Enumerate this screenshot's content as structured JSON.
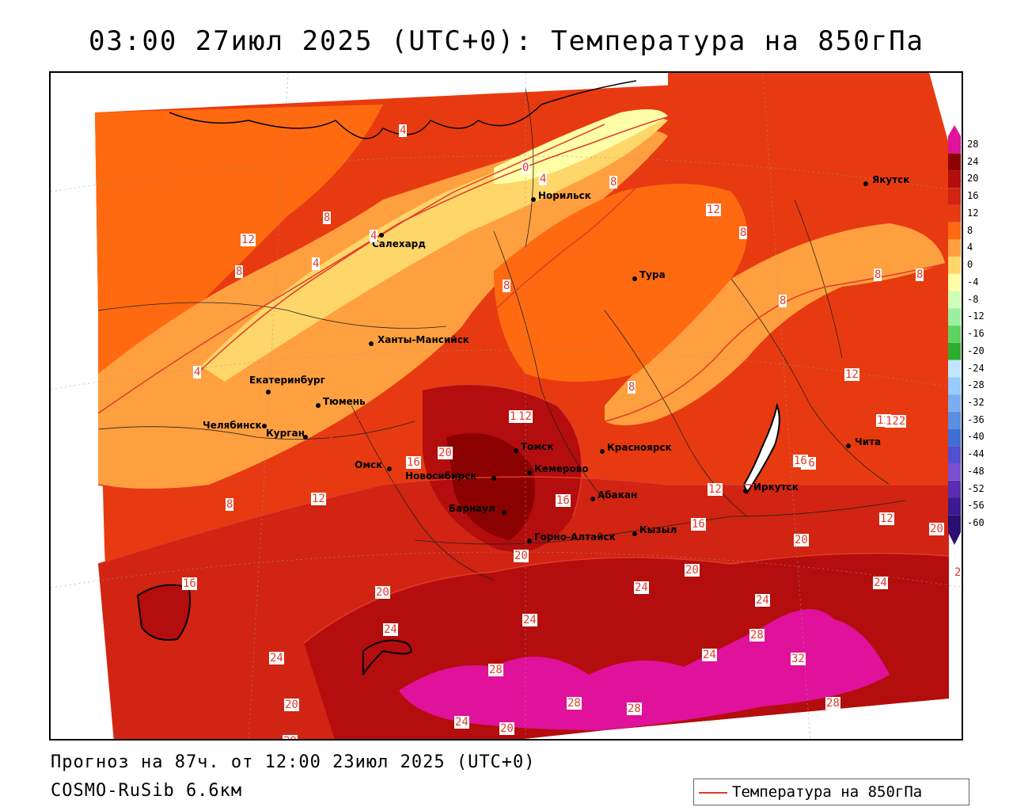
{
  "title": "03:00 27июл 2025 (UTC+0): Температура на 850гПа",
  "subtitle": "Прогноз на 87ч. от 12:00 23июл 2025 (UTC+0)",
  "model": "COSMO-RuSib 6.6км",
  "legend_label": "Температура на 850гПа",
  "colorbar": {
    "labels": [
      "28",
      "24",
      "20",
      "16",
      "12",
      "8",
      "4",
      "0",
      "-4",
      "-8",
      "-12",
      "-16",
      "-20",
      "-24",
      "-28",
      "-32",
      "-36",
      "-40",
      "-44",
      "-48",
      "-52",
      "-56",
      "-60"
    ],
    "colors": [
      "#e0119b",
      "#8b0000",
      "#b30d0d",
      "#d12412",
      "#e83a10",
      "#ff6a10",
      "#ffa040",
      "#ffd66a",
      "#ffffa8",
      "#d0ffb8",
      "#9af0a0",
      "#5fd35f",
      "#2eae2e",
      "#bfe7ff",
      "#99ccff",
      "#7aaef0",
      "#5a8ee0",
      "#3f6fd6",
      "#5050d0",
      "#7a4fd0",
      "#5a2db0",
      "#3b1a90",
      "#2a0e70"
    ]
  },
  "cities": [
    {
      "name": "Якутск"
    },
    {
      "name": "Норильск"
    },
    {
      "name": "Салехард"
    },
    {
      "name": "Тура"
    },
    {
      "name": "Ханты-Мансийск"
    },
    {
      "name": "Екатеринбург"
    },
    {
      "name": "Тюмень"
    },
    {
      "name": "Челябинск"
    },
    {
      "name": "Курган"
    },
    {
      "name": "Омск"
    },
    {
      "name": "Новосибирск"
    },
    {
      "name": "Томск"
    },
    {
      "name": "Кемерово"
    },
    {
      "name": "Красноярск"
    },
    {
      "name": "Барнаул"
    },
    {
      "name": "Абакан"
    },
    {
      "name": "Горно-Алтайск"
    },
    {
      "name": "Кызыл"
    },
    {
      "name": "Иркутск"
    },
    {
      "name": "Чита"
    }
  ],
  "contour_labels": [
    "4",
    "0",
    "4",
    "8",
    "12",
    "8",
    "12",
    "8",
    "4",
    "4",
    "8",
    "8",
    "8",
    "8",
    "8",
    "12",
    "8",
    "12",
    "12",
    "16",
    "20",
    "16",
    "12",
    "8",
    "12",
    "16",
    "12",
    "16",
    "16",
    "20",
    "20",
    "20",
    "20",
    "20",
    "24",
    "24",
    "24",
    "24",
    "24",
    "24",
    "20",
    "28",
    "28",
    "28",
    "32",
    "28",
    "28",
    "24",
    "24",
    "20",
    "20",
    "16",
    "20",
    "12",
    "122",
    "4"
  ]
}
